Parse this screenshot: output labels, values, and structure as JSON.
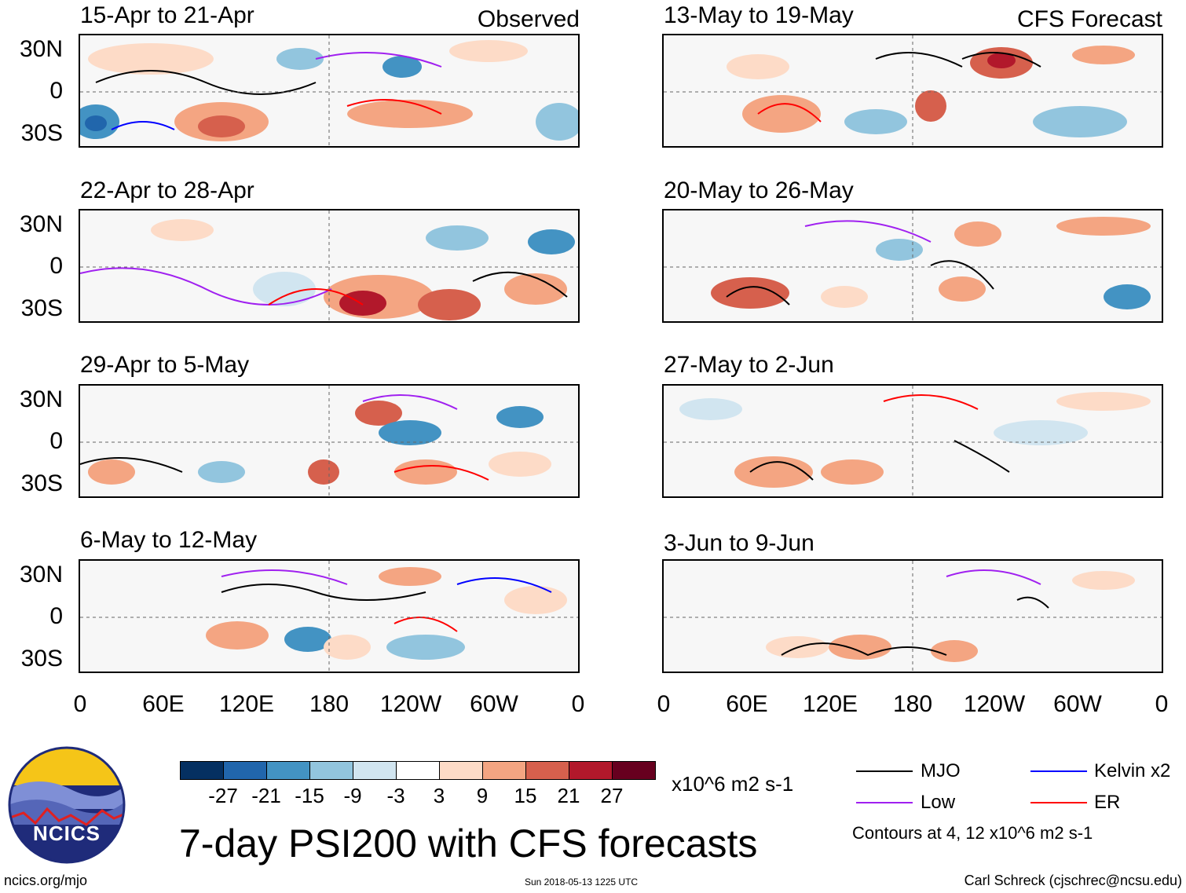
{
  "columns": {
    "left_label": "Observed",
    "right_label": "CFS Forecast"
  },
  "panels": {
    "left": [
      "15-Apr to 21-Apr",
      "22-Apr to 28-Apr",
      "29-Apr to 5-May",
      "6-May to 12-May"
    ],
    "right": [
      "13-May to 19-May",
      "20-May to 26-May",
      "27-May to 2-Jun",
      "3-Jun to 9-Jun"
    ]
  },
  "axes": {
    "lat_labels": [
      "30N",
      "0",
      "30S"
    ],
    "lon_labels": [
      "0",
      "60E",
      "120E",
      "180",
      "120W",
      "60W",
      "0"
    ]
  },
  "colorbar": {
    "colors": [
      "#053061",
      "#2166ac",
      "#4393c3",
      "#92c5de",
      "#d1e5f0",
      "#ffffff",
      "#fddbc7",
      "#f4a582",
      "#d6604d",
      "#b2182b",
      "#67001f"
    ],
    "tick_labels": [
      "-27",
      "-21",
      "-15",
      "-9",
      "-3",
      "3",
      "9",
      "15",
      "21",
      "27"
    ],
    "units": "x10^6 m2 s-1"
  },
  "legend": {
    "items": [
      {
        "label": "MJO",
        "color": "#000000"
      },
      {
        "label": "Kelvin x2",
        "color": "#0000ff"
      },
      {
        "label": "Low",
        "color": "#a020f0"
      },
      {
        "label": "ER",
        "color": "#ff0000"
      }
    ],
    "note": "Contours at 4, 12 x10^6 m2 s-1"
  },
  "logo_text": "NCICS",
  "main_title": "7-day PSI200 with CFS forecasts",
  "footer": {
    "left": "ncics.org/mjo",
    "center": "Sun 2018-05-13 1225 UTC",
    "right": "Carl Schreck (cjschrec@ncsu.edu)"
  }
}
